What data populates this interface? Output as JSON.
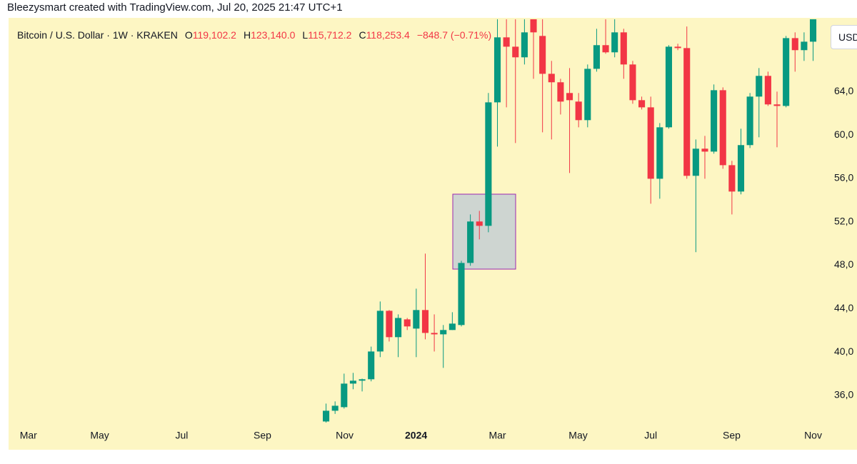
{
  "header": {
    "attribution": "Bleezysmart created with TradingView.com, Jul 20, 2025 21:47 UTC+1"
  },
  "legend": {
    "symbol": "Bitcoin / U.S. Dollar · 1W · KRAKEN",
    "fields": [
      {
        "key": "O",
        "value": "119,102.2"
      },
      {
        "key": "H",
        "value": "123,140.0"
      },
      {
        "key": "L",
        "value": "115,712.2"
      },
      {
        "key": "C",
        "value": "118,253.4"
      }
    ],
    "change": "−848.7 (−0.71%)"
  },
  "currency_badge": "USD",
  "chart_data": {
    "type": "candlestick",
    "categories": [
      null,
      null,
      null,
      null,
      null,
      null,
      null,
      null,
      null,
      null,
      null,
      null,
      null,
      null,
      null,
      null,
      null,
      null,
      null,
      null,
      null,
      null,
      null,
      null,
      null,
      null,
      null,
      null,
      null,
      null,
      null,
      null,
      null,
      null,
      null,
      null,
      null,
      null,
      null,
      null,
      null,
      null,
      null,
      null,
      null,
      null,
      null,
      null,
      null,
      null,
      null,
      null,
      null,
      null,
      null
    ],
    "open": [
      33600,
      34590,
      34920,
      37090,
      37360,
      37490,
      40050,
      43800,
      41370,
      43010,
      42160,
      43870,
      41760,
      41630,
      42030,
      42490,
      48210,
      52030,
      51630,
      63010,
      69000,
      68140,
      67160,
      71300,
      69130,
      65640,
      64860,
      63870,
      63080,
      61370,
      66100,
      68280,
      67620,
      69460,
      66500,
      63210,
      62550,
      55970,
      60710,
      68140,
      68010,
      56240,
      58740,
      58470,
      64130,
      57220,
      54790,
      59070,
      63540,
      65450,
      62820,
      62680,
      68930,
      67820,
      68600
    ],
    "high": [
      35250,
      35450,
      38010,
      38080,
      37550,
      40500,
      44660,
      43870,
      43470,
      43140,
      45840,
      49070,
      43470,
      42490,
      43670,
      48410,
      52680,
      53010,
      63870,
      72000,
      73800,
      71600,
      71700,
      72700,
      71000,
      66830,
      65180,
      66170,
      63870,
      66500,
      69790,
      71600,
      71900,
      69790,
      66830,
      63540,
      63540,
      61100,
      68280,
      68410,
      70000,
      59590,
      59920,
      64660,
      64390,
      57620,
      60580,
      63870,
      66170,
      65840,
      64000,
      69130,
      69460,
      69460,
      72000
    ],
    "low": [
      33500,
      34300,
      34790,
      36570,
      36370,
      37300,
      39530,
      40970,
      39530,
      42030,
      39530,
      41170,
      40050,
      38540,
      42030,
      42360,
      47950,
      50380,
      51040,
      58930,
      62550,
      59260,
      66500,
      65180,
      60250,
      59590,
      61890,
      56500,
      60710,
      60710,
      65840,
      67490,
      67160,
      65180,
      62880,
      62350,
      53670,
      54130,
      60580,
      67820,
      55970,
      49200,
      55970,
      58280,
      56890,
      52680,
      54530,
      58800,
      59790,
      62680,
      58870,
      62550,
      65840,
      66830,
      66830
    ],
    "close": [
      34590,
      35050,
      37090,
      37360,
      37490,
      40050,
      43800,
      41370,
      43140,
      42360,
      43870,
      41760,
      41630,
      42030,
      42620,
      48210,
      52030,
      51630,
      63010,
      69000,
      68140,
      67160,
      69460,
      69460,
      65640,
      64860,
      63080,
      63210,
      61370,
      66100,
      68280,
      67620,
      69460,
      66500,
      63210,
      62550,
      55970,
      60710,
      68140,
      68010,
      56240,
      58740,
      58470,
      64130,
      57220,
      54790,
      59070,
      63540,
      65450,
      62820,
      62680,
      68930,
      67820,
      68600,
      71000
    ],
    "up_color": "#089981",
    "down_color": "#f23645",
    "ylim": [
      33300,
      70600
    ],
    "yticks": [
      {
        "value": 36000,
        "label": "36,0"
      },
      {
        "value": 40000,
        "label": "40,0"
      },
      {
        "value": 44000,
        "label": "44,0"
      },
      {
        "value": 48000,
        "label": "48,0"
      },
      {
        "value": 52000,
        "label": "52,0"
      },
      {
        "value": 56000,
        "label": "56,0"
      },
      {
        "value": 60000,
        "label": "60,0"
      },
      {
        "value": 64000,
        "label": "64,0"
      }
    ],
    "xlim": [
      -35.2,
      55.7
    ],
    "xticks": [
      {
        "value": -33.0,
        "label": "Mar"
      },
      {
        "value": -25.1,
        "label": "May"
      },
      {
        "value": -16.0,
        "label": "Jul"
      },
      {
        "value": -7.05,
        "label": "Sep"
      },
      {
        "value": 2.06,
        "label": "Nov"
      },
      {
        "value": 9.98,
        "label": "2024",
        "bold": true
      },
      {
        "value": 19.0,
        "label": "Mar"
      },
      {
        "value": 27.95,
        "label": "May"
      },
      {
        "value": 36.0,
        "label": "Jul"
      },
      {
        "value": 44.97,
        "label": "Sep"
      },
      {
        "value": 54.0,
        "label": "Nov"
      }
    ],
    "grid": false
  }
}
